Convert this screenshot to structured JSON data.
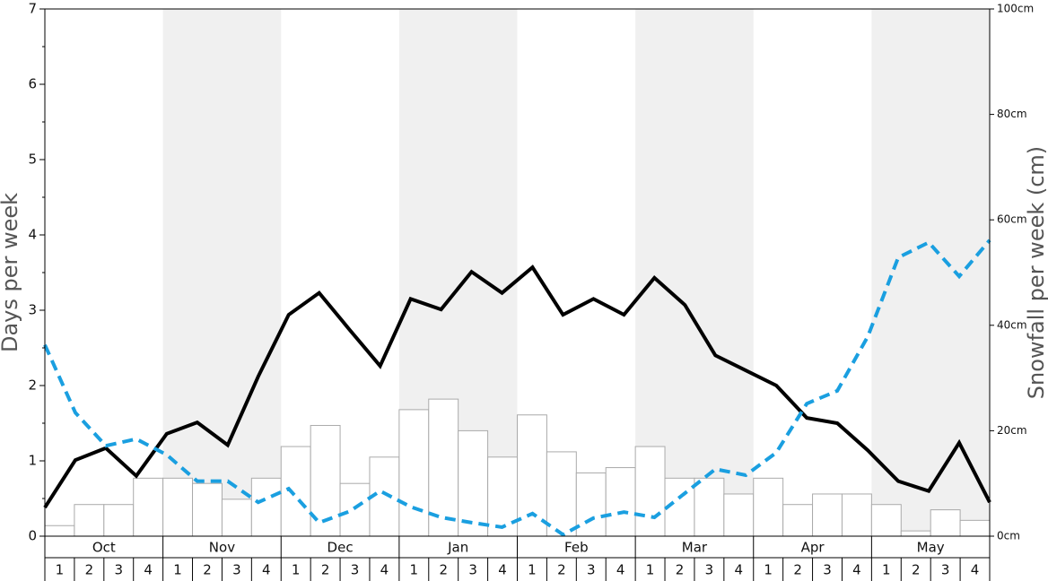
{
  "chart_data": {
    "type": "bar",
    "ylabel": "Days per week",
    "y2label": "Snowfall per week (cm)",
    "months": [
      "Oct",
      "Nov",
      "Dec",
      "Jan",
      "Feb",
      "Mar",
      "Apr",
      "May"
    ],
    "categories": [
      "1",
      "2",
      "3",
      "4",
      "1",
      "2",
      "3",
      "4",
      "1",
      "2",
      "3",
      "4",
      "1",
      "2",
      "3",
      "4",
      "1",
      "2",
      "3",
      "4",
      "1",
      "2",
      "3",
      "4",
      "1",
      "2",
      "3",
      "4",
      "1",
      "2",
      "3",
      "4"
    ],
    "ylim": [
      0,
      7
    ],
    "yticks": [
      0,
      1,
      2,
      3,
      4,
      5,
      6,
      7
    ],
    "y2lim": [
      0,
      100
    ],
    "y2ticks": [
      {
        "value": 0,
        "label": "0cm"
      },
      {
        "value": 20,
        "label": "20cm"
      },
      {
        "value": 40,
        "label": "40cm"
      },
      {
        "value": 60,
        "label": "60cm"
      },
      {
        "value": 80,
        "label": "80cm"
      },
      {
        "value": 100,
        "label": "100cm"
      }
    ],
    "band_color": "#f0f0f0",
    "series": [
      {
        "type": "bar",
        "axis": "y2",
        "color": "#ffffff",
        "stroke": "#aaaaaa",
        "values": [
          2,
          6,
          6,
          11,
          11,
          10,
          7,
          11,
          17,
          21,
          10,
          15,
          24,
          26,
          20,
          15,
          23,
          16,
          12,
          13,
          17,
          11,
          11,
          8,
          11,
          6,
          8,
          8,
          6,
          1,
          5,
          3
        ]
      },
      {
        "type": "line",
        "color": "#000000",
        "dashed": false,
        "values": [
          0.38,
          1.01,
          1.17,
          0.8,
          1.36,
          1.51,
          1.21,
          2.12,
          2.94,
          3.23,
          2.74,
          2.26,
          3.15,
          3.01,
          3.51,
          3.23,
          3.57,
          2.94,
          3.15,
          2.94,
          3.43,
          3.07,
          2.4,
          2.2,
          2.0,
          1.57,
          1.5,
          1.14,
          0.73,
          0.6,
          1.24,
          0.45
        ]
      },
      {
        "type": "line",
        "color": "#1a9fe0",
        "dashed": true,
        "values": [
          2.54,
          1.64,
          1.2,
          1.29,
          1.08,
          0.73,
          0.73,
          0.45,
          0.63,
          0.18,
          0.33,
          0.6,
          0.39,
          0.25,
          0.18,
          0.12,
          0.3,
          0.02,
          0.24,
          0.32,
          0.25,
          0.57,
          0.89,
          0.81,
          1.11,
          1.76,
          1.93,
          2.65,
          3.7,
          3.9,
          3.45,
          3.93
        ]
      }
    ]
  }
}
